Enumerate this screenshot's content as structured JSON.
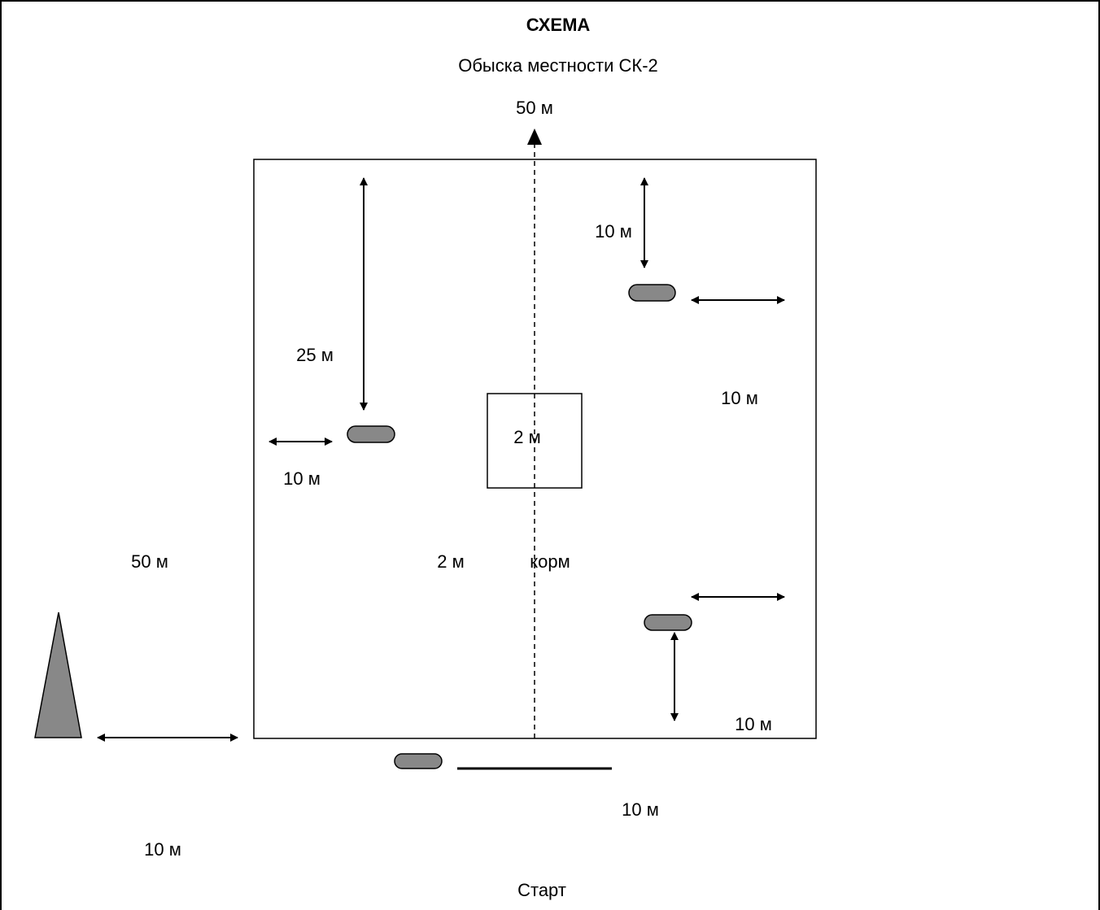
{
  "title": "СХЕМА",
  "subtitle": "Обыска местности СК-2",
  "labels": {
    "top_50m": "50 м",
    "left_50m": "50 м",
    "left_25m": "25 м",
    "left_10m_arrow": "10 м",
    "center_2m": "2 м",
    "lower_2m": "2 м",
    "feed": "корм",
    "top_right_10m": "10 м",
    "right_mid_10m": "10 м",
    "bottom_right_10m": "10 м",
    "bottom_10m": "10 м",
    "bottom_left_10m": "10 м",
    "start": "Старт"
  },
  "colors": {
    "line": "#000000",
    "object_fill": "#888888"
  }
}
